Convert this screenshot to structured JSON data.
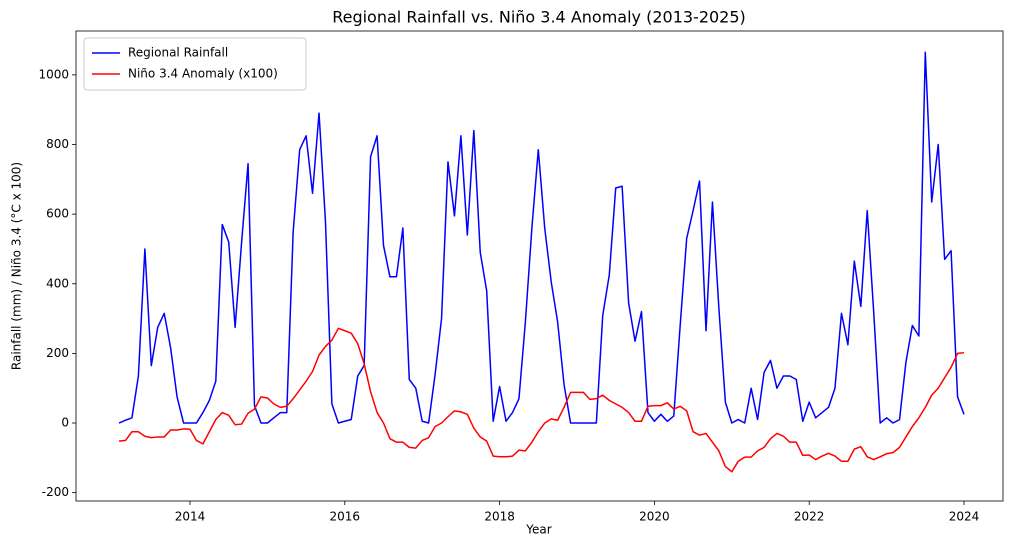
{
  "chart_data": {
    "type": "line",
    "title": "Regional Rainfall vs. Niño 3.4 Anomaly (2013-2025)",
    "x_label": "Year",
    "y_label": "Rainfall (mm) / Niño 3.4 (°C x 100)",
    "x": [
      2013.083,
      2013.167,
      2013.25,
      2013.333,
      2013.417,
      2013.5,
      2013.583,
      2013.667,
      2013.75,
      2013.833,
      2013.917,
      2014,
      2014.083,
      2014.167,
      2014.25,
      2014.333,
      2014.417,
      2014.5,
      2014.583,
      2014.667,
      2014.75,
      2014.833,
      2014.917,
      2015,
      2015.083,
      2015.167,
      2015.25,
      2015.333,
      2015.417,
      2015.5,
      2015.583,
      2015.667,
      2015.75,
      2015.833,
      2015.917,
      2016,
      2016.083,
      2016.167,
      2016.25,
      2016.333,
      2016.417,
      2016.5,
      2016.583,
      2016.667,
      2016.75,
      2016.833,
      2016.917,
      2017,
      2017.083,
      2017.167,
      2017.25,
      2017.333,
      2017.417,
      2017.5,
      2017.583,
      2017.667,
      2017.75,
      2017.833,
      2017.917,
      2018,
      2018.083,
      2018.167,
      2018.25,
      2018.333,
      2018.417,
      2018.5,
      2018.583,
      2018.667,
      2018.75,
      2018.833,
      2018.917,
      2019,
      2019.083,
      2019.167,
      2019.25,
      2019.333,
      2019.417,
      2019.5,
      2019.583,
      2019.667,
      2019.75,
      2019.833,
      2019.917,
      2020,
      2020.083,
      2020.167,
      2020.25,
      2020.333,
      2020.417,
      2020.5,
      2020.583,
      2020.667,
      2020.75,
      2020.833,
      2020.917,
      2021,
      2021.083,
      2021.167,
      2021.25,
      2021.333,
      2021.417,
      2021.5,
      2021.583,
      2021.667,
      2021.75,
      2021.833,
      2021.917,
      2022,
      2022.083,
      2022.167,
      2022.25,
      2022.333,
      2022.417,
      2022.5,
      2022.583,
      2022.667,
      2022.75,
      2022.833,
      2022.917,
      2023,
      2023.083,
      2023.167,
      2023.25,
      2023.333,
      2023.417,
      2023.5,
      2023.583,
      2023.667,
      2023.75,
      2023.833,
      2023.917,
      2024
    ],
    "series": [
      {
        "name": "Regional Rainfall",
        "color": "#0000ff",
        "values": [
          0,
          8,
          15,
          135,
          500,
          165,
          275,
          315,
          215,
          75,
          0,
          0,
          0,
          30,
          65,
          120,
          570,
          520,
          275,
          520,
          745,
          50,
          0,
          0,
          15,
          30,
          30,
          550,
          785,
          825,
          660,
          890,
          580,
          55,
          0,
          5,
          10,
          135,
          165,
          765,
          825,
          510,
          420,
          420,
          560,
          125,
          100,
          5,
          0,
          140,
          300,
          750,
          595,
          825,
          540,
          840,
          490,
          380,
          5,
          105,
          5,
          30,
          70,
          290,
          560,
          785,
          560,
          405,
          290,
          110,
          0,
          0,
          0,
          0,
          0,
          310,
          425,
          675,
          680,
          345,
          235,
          320,
          30,
          5,
          25,
          5,
          20,
          280,
          530,
          610,
          695,
          265,
          635,
          330,
          60,
          0,
          10,
          0,
          100,
          10,
          145,
          180,
          100,
          135,
          135,
          125,
          5,
          60,
          15,
          30,
          45,
          100,
          315,
          225,
          465,
          335,
          610,
          320,
          0,
          15,
          0,
          10,
          175,
          280,
          250,
          1065,
          635,
          800,
          470,
          495,
          75,
          25
        ]
      },
      {
        "name": "Niño 3.4 Anomaly (x100)",
        "color": "#ff0000",
        "values": [
          -52,
          -50,
          -25,
          -25,
          -38,
          -42,
          -40,
          -40,
          -20,
          -20,
          -17,
          -18,
          -50,
          -60,
          -25,
          10,
          30,
          22,
          -5,
          -3,
          28,
          40,
          75,
          72,
          55,
          45,
          48,
          70,
          95,
          120,
          148,
          195,
          220,
          238,
          272,
          265,
          258,
          228,
          170,
          90,
          30,
          0,
          -45,
          -55,
          -55,
          -70,
          -72,
          -50,
          -42,
          -10,
          0,
          18,
          35,
          32,
          25,
          -15,
          -40,
          -52,
          -95,
          -97,
          -97,
          -95,
          -78,
          -80,
          -55,
          -25,
          0,
          12,
          8,
          45,
          88,
          88,
          88,
          68,
          70,
          80,
          65,
          55,
          45,
          30,
          5,
          5,
          48,
          50,
          50,
          58,
          40,
          48,
          35,
          -25,
          -35,
          -30,
          -55,
          -80,
          -125,
          -140,
          -110,
          -98,
          -98,
          -80,
          -70,
          -45,
          -30,
          -38,
          -55,
          -55,
          -93,
          -92,
          -105,
          -95,
          -87,
          -95,
          -110,
          -110,
          -75,
          -68,
          -97,
          -105,
          -97,
          -88,
          -85,
          -70,
          -40,
          -10,
          15,
          45,
          80,
          100,
          130,
          160,
          200,
          202
        ]
      }
    ],
    "xlim": [
      2012.527,
      2024.504
    ],
    "xticks": [
      2014,
      2016,
      2018,
      2020,
      2022,
      2024
    ],
    "ylim": [
      -224,
      1126
    ],
    "yticks": [
      -200,
      0,
      200,
      400,
      600,
      800,
      1000
    ],
    "grid": false,
    "legend": "upper left"
  }
}
